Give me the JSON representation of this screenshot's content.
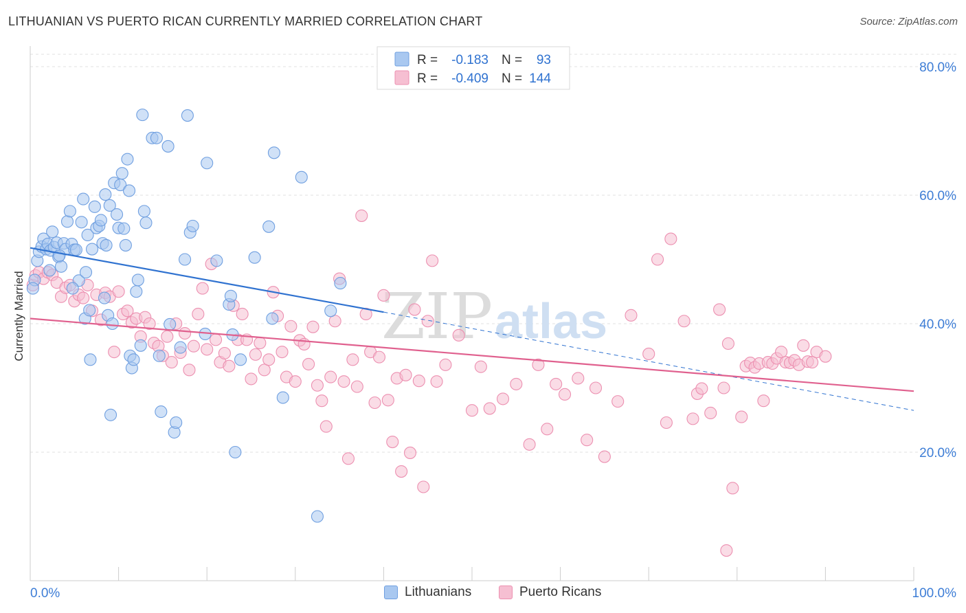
{
  "title": "LITHUANIAN VS PUERTO RICAN CURRENTLY MARRIED CORRELATION CHART",
  "source": "Source: ZipAtlas.com",
  "watermark": {
    "zip": "ZIP",
    "atlas": "atlas"
  },
  "colors": {
    "blue": "#6f9fe0",
    "blue_fill": "#a9c8f0",
    "blue_line": "#2f72d0",
    "pink": "#ec8fb0",
    "pink_fill": "#f6bfd2",
    "pink_line": "#e0608e",
    "axis_text": "#3d7dd6",
    "grid": "#e2e2e2"
  },
  "stats_legend": {
    "rows": [
      {
        "r_label": "R =",
        "r_value": "-0.183",
        "n_label": "N =",
        "n_value": "93"
      },
      {
        "r_label": "R =",
        "r_value": "-0.409",
        "n_label": "N =",
        "n_value": "144"
      }
    ]
  },
  "bottom_legend": {
    "items": [
      "Lithuanians",
      "Puerto Ricans"
    ]
  },
  "chart_data": {
    "type": "scatter",
    "xlabel": "",
    "ylabel": "Currently Married",
    "xlim": [
      0,
      100
    ],
    "ylim": [
      0,
      80
    ],
    "x_tick_labels": [
      "0.0%",
      "100.0%"
    ],
    "y_ticks": [
      20,
      40,
      60,
      80
    ],
    "y_tick_labels": [
      "20.0%",
      "40.0%",
      "60.0%",
      "80.0%"
    ],
    "grid": true,
    "series": [
      {
        "name": "Lithuanians",
        "r": -0.183,
        "n": 93,
        "trend": {
          "x0": 0,
          "y0": 51.8,
          "x1": 40,
          "y1": 41.8,
          "dashed_to_x": 100,
          "dashed_to_y": 26.5
        },
        "points": [
          [
            0.5,
            46.8
          ],
          [
            0.8,
            49.8
          ],
          [
            1.0,
            51.2
          ],
          [
            1.3,
            52.0
          ],
          [
            1.5,
            53.2
          ],
          [
            1.8,
            51.6
          ],
          [
            2.0,
            52.4
          ],
          [
            2.3,
            51.4
          ],
          [
            2.5,
            54.3
          ],
          [
            2.7,
            51.9
          ],
          [
            3.0,
            52.6
          ],
          [
            3.2,
            50.4
          ],
          [
            3.5,
            48.9
          ],
          [
            3.8,
            52.5
          ],
          [
            4.0,
            51.6
          ],
          [
            4.2,
            55.9
          ],
          [
            4.5,
            57.5
          ],
          [
            4.7,
            52.4
          ],
          [
            5.0,
            51.5
          ],
          [
            5.2,
            51.5
          ],
          [
            5.5,
            46.7
          ],
          [
            5.8,
            55.8
          ],
          [
            6.0,
            59.4
          ],
          [
            6.2,
            40.8
          ],
          [
            6.5,
            53.8
          ],
          [
            6.7,
            42.1
          ],
          [
            6.8,
            34.4
          ],
          [
            7.0,
            51.6
          ],
          [
            7.3,
            58.2
          ],
          [
            7.5,
            54.9
          ],
          [
            7.8,
            55.2
          ],
          [
            8.0,
            56.1
          ],
          [
            8.2,
            52.5
          ],
          [
            8.5,
            60.1
          ],
          [
            8.6,
            52.2
          ],
          [
            8.8,
            41.3
          ],
          [
            9.0,
            58.4
          ],
          [
            9.1,
            25.8
          ],
          [
            9.3,
            40.0
          ],
          [
            9.5,
            61.9
          ],
          [
            9.8,
            57.0
          ],
          [
            10.0,
            54.9
          ],
          [
            10.2,
            61.6
          ],
          [
            10.4,
            63.4
          ],
          [
            10.6,
            54.8
          ],
          [
            10.8,
            52.2
          ],
          [
            11.0,
            65.6
          ],
          [
            11.2,
            60.7
          ],
          [
            11.3,
            35.0
          ],
          [
            11.5,
            33.1
          ],
          [
            11.7,
            34.4
          ],
          [
            12.0,
            45.0
          ],
          [
            12.2,
            46.8
          ],
          [
            12.5,
            36.6
          ],
          [
            12.7,
            72.5
          ],
          [
            12.9,
            57.5
          ],
          [
            13.1,
            55.7
          ],
          [
            13.8,
            68.9
          ],
          [
            14.3,
            68.9
          ],
          [
            14.6,
            35.0
          ],
          [
            14.8,
            26.3
          ],
          [
            15.6,
            67.6
          ],
          [
            15.8,
            39.9
          ],
          [
            16.3,
            23.1
          ],
          [
            16.5,
            24.6
          ],
          [
            17.0,
            36.3
          ],
          [
            17.5,
            50.0
          ],
          [
            17.8,
            72.4
          ],
          [
            18.1,
            54.2
          ],
          [
            18.4,
            55.2
          ],
          [
            19.8,
            38.4
          ],
          [
            20.0,
            65.0
          ],
          [
            21.1,
            49.8
          ],
          [
            22.5,
            43.0
          ],
          [
            22.7,
            44.3
          ],
          [
            22.9,
            38.3
          ],
          [
            23.2,
            20.0
          ],
          [
            23.8,
            34.4
          ],
          [
            25.4,
            50.3
          ],
          [
            27.0,
            55.1
          ],
          [
            27.4,
            40.8
          ],
          [
            27.6,
            66.6
          ],
          [
            30.7,
            62.8
          ],
          [
            32.5,
            10.0
          ],
          [
            35.1,
            46.3
          ],
          [
            2.2,
            48.3
          ],
          [
            3.3,
            50.6
          ],
          [
            4.8,
            45.5
          ],
          [
            6.3,
            48.0
          ],
          [
            8.4,
            44.0
          ],
          [
            28.6,
            28.5
          ],
          [
            34.0,
            42.0
          ],
          [
            0.3,
            45.5
          ]
        ]
      },
      {
        "name": "Puerto Ricans",
        "r": -0.409,
        "n": 144,
        "trend": {
          "x0": 0,
          "y0": 40.8,
          "x1": 100,
          "y1": 29.5
        },
        "points": [
          [
            0.3,
            46.0
          ],
          [
            0.6,
            47.5
          ],
          [
            1.0,
            48.0
          ],
          [
            1.5,
            47.0
          ],
          [
            2.0,
            48.0
          ],
          [
            2.5,
            47.6
          ],
          [
            3.0,
            46.4
          ],
          [
            3.5,
            44.2
          ],
          [
            4.0,
            45.6
          ],
          [
            4.5,
            46.0
          ],
          [
            5.0,
            43.5
          ],
          [
            5.5,
            44.5
          ],
          [
            6.0,
            44.0
          ],
          [
            6.5,
            46.0
          ],
          [
            7.0,
            42.0
          ],
          [
            7.5,
            44.5
          ],
          [
            8.0,
            40.6
          ],
          [
            8.5,
            44.8
          ],
          [
            9.0,
            44.2
          ],
          [
            9.5,
            35.6
          ],
          [
            10.0,
            45.0
          ],
          [
            10.5,
            41.5
          ],
          [
            11.0,
            42.0
          ],
          [
            11.5,
            40.2
          ],
          [
            12.0,
            40.8
          ],
          [
            12.5,
            38.0
          ],
          [
            13.0,
            41.0
          ],
          [
            13.5,
            40.0
          ],
          [
            14.0,
            37.0
          ],
          [
            14.5,
            36.5
          ],
          [
            15.0,
            35.0
          ],
          [
            15.5,
            38.0
          ],
          [
            16.0,
            34.0
          ],
          [
            16.5,
            40.0
          ],
          [
            17.0,
            35.5
          ],
          [
            17.5,
            38.5
          ],
          [
            18.0,
            32.8
          ],
          [
            18.5,
            36.5
          ],
          [
            19.0,
            41.5
          ],
          [
            19.5,
            45.5
          ],
          [
            20.0,
            36.0
          ],
          [
            20.5,
            49.3
          ],
          [
            21.0,
            37.5
          ],
          [
            21.5,
            34.0
          ],
          [
            22.0,
            35.4
          ],
          [
            22.5,
            33.4
          ],
          [
            23.0,
            42.8
          ],
          [
            23.5,
            37.5
          ],
          [
            24.0,
            41.5
          ],
          [
            24.5,
            37.5
          ],
          [
            25.0,
            31.4
          ],
          [
            25.5,
            35.2
          ],
          [
            26.0,
            37.0
          ],
          [
            26.5,
            32.8
          ],
          [
            27.0,
            34.4
          ],
          [
            27.5,
            44.9
          ],
          [
            28.0,
            41.2
          ],
          [
            28.5,
            35.6
          ],
          [
            29.0,
            31.7
          ],
          [
            29.5,
            39.6
          ],
          [
            30.0,
            31.0
          ],
          [
            30.5,
            37.4
          ],
          [
            31.0,
            36.8
          ],
          [
            31.5,
            33.7
          ],
          [
            32.0,
            39.5
          ],
          [
            32.5,
            30.4
          ],
          [
            33.0,
            28.0
          ],
          [
            33.5,
            24.0
          ],
          [
            34.0,
            31.7
          ],
          [
            34.5,
            40.4
          ],
          [
            35.0,
            47.0
          ],
          [
            35.5,
            31.0
          ],
          [
            36.0,
            19.0
          ],
          [
            36.5,
            34.4
          ],
          [
            37.0,
            30.2
          ],
          [
            37.5,
            56.8
          ],
          [
            38.0,
            41.5
          ],
          [
            38.5,
            35.6
          ],
          [
            39.0,
            27.7
          ],
          [
            39.5,
            34.8
          ],
          [
            40.0,
            44.4
          ],
          [
            40.5,
            28.1
          ],
          [
            41.0,
            21.6
          ],
          [
            41.5,
            31.5
          ],
          [
            42.0,
            17.0
          ],
          [
            42.5,
            32.0
          ],
          [
            43.0,
            19.9
          ],
          [
            43.5,
            42.2
          ],
          [
            44.0,
            31.1
          ],
          [
            44.5,
            14.6
          ],
          [
            45.0,
            40.4
          ],
          [
            45.5,
            49.8
          ],
          [
            46.0,
            31.0
          ],
          [
            47.0,
            33.6
          ],
          [
            48.5,
            38.2
          ],
          [
            50.0,
            26.5
          ],
          [
            51.0,
            33.3
          ],
          [
            52.0,
            26.8
          ],
          [
            53.5,
            28.3
          ],
          [
            55.0,
            30.6
          ],
          [
            56.5,
            21.2
          ],
          [
            57.5,
            33.6
          ],
          [
            58.5,
            23.6
          ],
          [
            59.5,
            30.6
          ],
          [
            60.5,
            29.0
          ],
          [
            62.0,
            31.5
          ],
          [
            63.0,
            21.9
          ],
          [
            64.0,
            30.0
          ],
          [
            65.0,
            19.3
          ],
          [
            66.5,
            27.9
          ],
          [
            68.0,
            41.3
          ],
          [
            70.0,
            35.3
          ],
          [
            71.0,
            50.0
          ],
          [
            72.0,
            24.6
          ],
          [
            72.5,
            53.2
          ],
          [
            74.0,
            40.4
          ],
          [
            75.0,
            25.2
          ],
          [
            75.5,
            29.1
          ],
          [
            76.0,
            29.9
          ],
          [
            77.0,
            26.1
          ],
          [
            78.0,
            42.2
          ],
          [
            78.5,
            30.0
          ],
          [
            79.0,
            36.9
          ],
          [
            79.5,
            14.4
          ],
          [
            80.5,
            25.5
          ],
          [
            81.0,
            33.4
          ],
          [
            81.5,
            33.9
          ],
          [
            82.0,
            33.2
          ],
          [
            82.5,
            33.8
          ],
          [
            83.0,
            28.0
          ],
          [
            83.5,
            34.0
          ],
          [
            84.0,
            33.8
          ],
          [
            84.5,
            34.6
          ],
          [
            85.0,
            35.6
          ],
          [
            85.5,
            34.0
          ],
          [
            86.0,
            33.9
          ],
          [
            86.5,
            34.3
          ],
          [
            87.0,
            33.6
          ],
          [
            87.5,
            36.6
          ],
          [
            88.0,
            34.1
          ],
          [
            88.5,
            34.0
          ],
          [
            89.0,
            35.6
          ],
          [
            90.0,
            34.9
          ],
          [
            78.8,
            4.7
          ]
        ]
      }
    ]
  }
}
